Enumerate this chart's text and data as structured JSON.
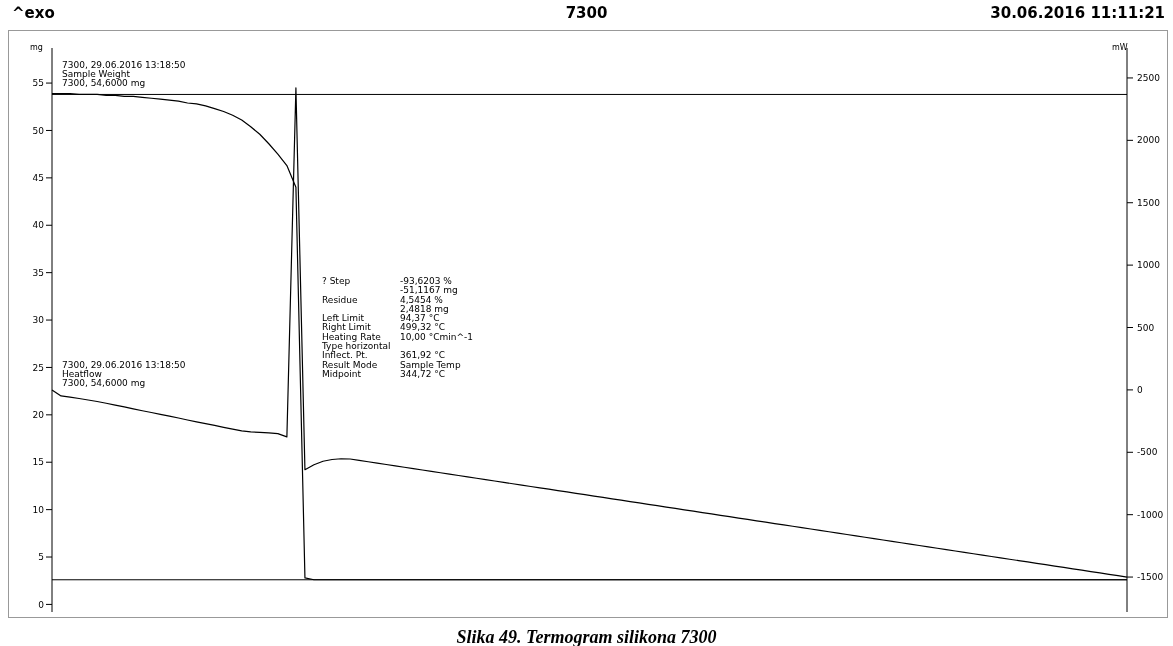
{
  "chart_data": {
    "type": "line",
    "title": "7300",
    "ylabel": "mg",
    "y2label": "mW",
    "annotations": [
      "^exo",
      "30.06.2016 11:11:21",
      "Slika 49. Termogram silikona 7300",
      "7300, 29.06.2016 13:18:50",
      "7300, 54,6000 mg",
      "7300, 29.06.2016 13:18:50",
      "7300, 54,6000 mg",
      "? Step\t-93,6203 %",
      "\t-51,1167 mg",
      "Residue\t4,5454 %",
      "\t2,4818 mg",
      "Left Limit\t94,37 °C",
      "Right Limit\t499,32 °C",
      "Heating Rate\t10,00 °Cmin^-1",
      "Type horizontal",
      "Inflect. Pt.\t361,92 °C",
      "Result Mode\tSample Temp",
      "Midpoint\t344,72 °C"
    ],
    "categories": [
      null,
      null,
      null,
      null,
      null,
      null,
      null,
      null,
      null,
      null,
      null,
      null,
      null,
      null,
      null,
      null,
      null,
      null,
      null,
      null,
      null,
      null,
      null,
      null,
      null,
      null,
      null,
      null,
      null,
      null,
      null,
      null,
      null,
      null,
      null,
      null,
      null,
      null,
      null,
      null,
      null,
      null,
      null,
      null,
      null,
      null,
      null,
      null,
      null,
      null,
      null,
      null,
      null,
      null,
      null,
      null,
      null,
      null,
      null,
      null,
      null,
      null,
      null,
      null,
      null,
      null,
      null,
      null,
      null,
      null,
      null,
      null,
      null,
      null,
      null,
      null,
      null,
      null,
      null,
      null,
      null,
      null,
      null,
      null,
      null,
      null,
      null,
      null,
      null,
      null,
      null,
      null,
      null,
      null,
      null,
      null,
      null,
      null,
      null,
      null,
      null,
      null,
      null,
      null,
      null,
      null,
      null,
      null,
      null,
      null,
      null,
      null,
      null,
      null,
      null,
      null,
      null,
      null,
      null,
      null
    ],
    "series": [
      {
        "name": "Sample Weight",
        "color": "#000000",
        "axis": "y",
        "values": [
          53.9,
          53.9,
          53.9,
          53.8,
          53.8,
          53.8,
          53.7,
          53.7,
          53.6,
          53.6,
          53.5,
          53.4,
          53.3,
          53.2,
          53.1,
          52.9,
          52.8,
          52.6,
          52.3,
          52.0,
          51.6,
          51.1,
          50.4,
          49.6,
          48.6,
          47.5,
          46.3,
          44.0,
          2.8,
          2.6,
          2.6,
          2.6,
          2.6,
          2.6,
          2.6,
          2.6,
          2.6,
          2.6,
          2.6,
          2.6,
          2.6,
          2.6,
          2.6,
          2.6,
          2.6,
          2.6,
          2.6,
          2.6,
          2.6,
          2.6,
          2.6,
          2.6,
          2.6,
          2.6,
          2.6,
          2.6,
          2.6,
          2.6,
          2.6,
          2.6,
          2.6,
          2.6,
          2.6,
          2.6,
          2.6,
          2.6,
          2.6,
          2.6,
          2.6,
          2.6,
          2.6,
          2.6,
          2.6,
          2.6,
          2.6,
          2.6,
          2.6,
          2.6,
          2.6,
          2.6,
          2.6,
          2.6,
          2.6,
          2.6,
          2.6,
          2.6,
          2.6,
          2.6,
          2.6,
          2.6,
          2.6,
          2.6,
          2.6,
          2.6,
          2.6,
          2.6,
          2.6,
          2.6,
          2.6,
          2.6,
          2.6,
          2.6,
          2.6,
          2.6,
          2.6,
          2.6,
          2.6,
          2.6,
          2.6,
          2.6,
          2.6,
          2.6,
          2.6,
          2.6,
          2.6,
          2.6,
          2.6,
          2.6,
          2.6,
          2.6
        ]
      },
      {
        "name": "Heatflow",
        "color": "#000000",
        "axis": "y2",
        "values": [
          0,
          -48,
          -58,
          -69,
          -81,
          -93,
          -107,
          -122,
          -136,
          -152,
          -167,
          -181,
          -196,
          -210,
          -225,
          -241,
          -256,
          -270,
          -285,
          -300,
          -315,
          -329,
          -336,
          -341,
          -345,
          -350,
          -377,
          2420,
          -640,
          -600,
          -572,
          -558,
          -552,
          -554,
          -565,
          -576,
          -587,
          -598,
          -609,
          -620,
          -631,
          -642,
          -653,
          -664,
          -675,
          -686,
          -697,
          -708,
          -719,
          -730,
          -741,
          -752,
          -763,
          -774,
          -785,
          -796,
          -807,
          -818,
          -829,
          -840,
          -851,
          -862,
          -873,
          -884,
          -895,
          -906,
          -917,
          -928,
          -939,
          -950,
          -961,
          -972,
          -983,
          -994,
          -1005,
          -1016,
          -1027,
          -1038,
          -1049,
          -1060,
          -1071,
          -1082,
          -1093,
          -1104,
          -1115,
          -1126,
          -1137,
          -1148,
          -1159,
          -1170,
          -1181,
          -1192,
          -1203,
          -1214,
          -1225,
          -1236,
          -1247,
          -1258,
          -1269,
          -1280,
          -1291,
          -1302,
          -1313,
          -1324,
          -1335,
          -1346,
          -1357,
          -1368,
          -1379,
          -1390,
          -1401,
          -1412,
          -1423,
          -1434,
          -1445,
          -1456,
          -1467,
          -1478,
          -1489,
          -1500
        ]
      }
    ],
    "ylim": [
      -0.8,
      58.7
    ],
    "yticks": [
      0,
      5,
      10,
      15,
      20,
      25,
      30,
      35,
      40,
      45,
      50,
      55
    ],
    "y2lim": [
      -1780,
      2740
    ],
    "y2ticks": [
      -1500,
      -1000,
      -500,
      0,
      500,
      1000,
      1500,
      2000,
      2500
    ],
    "ref_lines": [
      {
        "axis": "y",
        "value": 53.8,
        "color": "#000000"
      },
      {
        "axis": "y",
        "value": 2.6,
        "color": "#000000"
      }
    ],
    "marker": "none",
    "line_style": "solid",
    "tick_labels": "y"
  }
}
